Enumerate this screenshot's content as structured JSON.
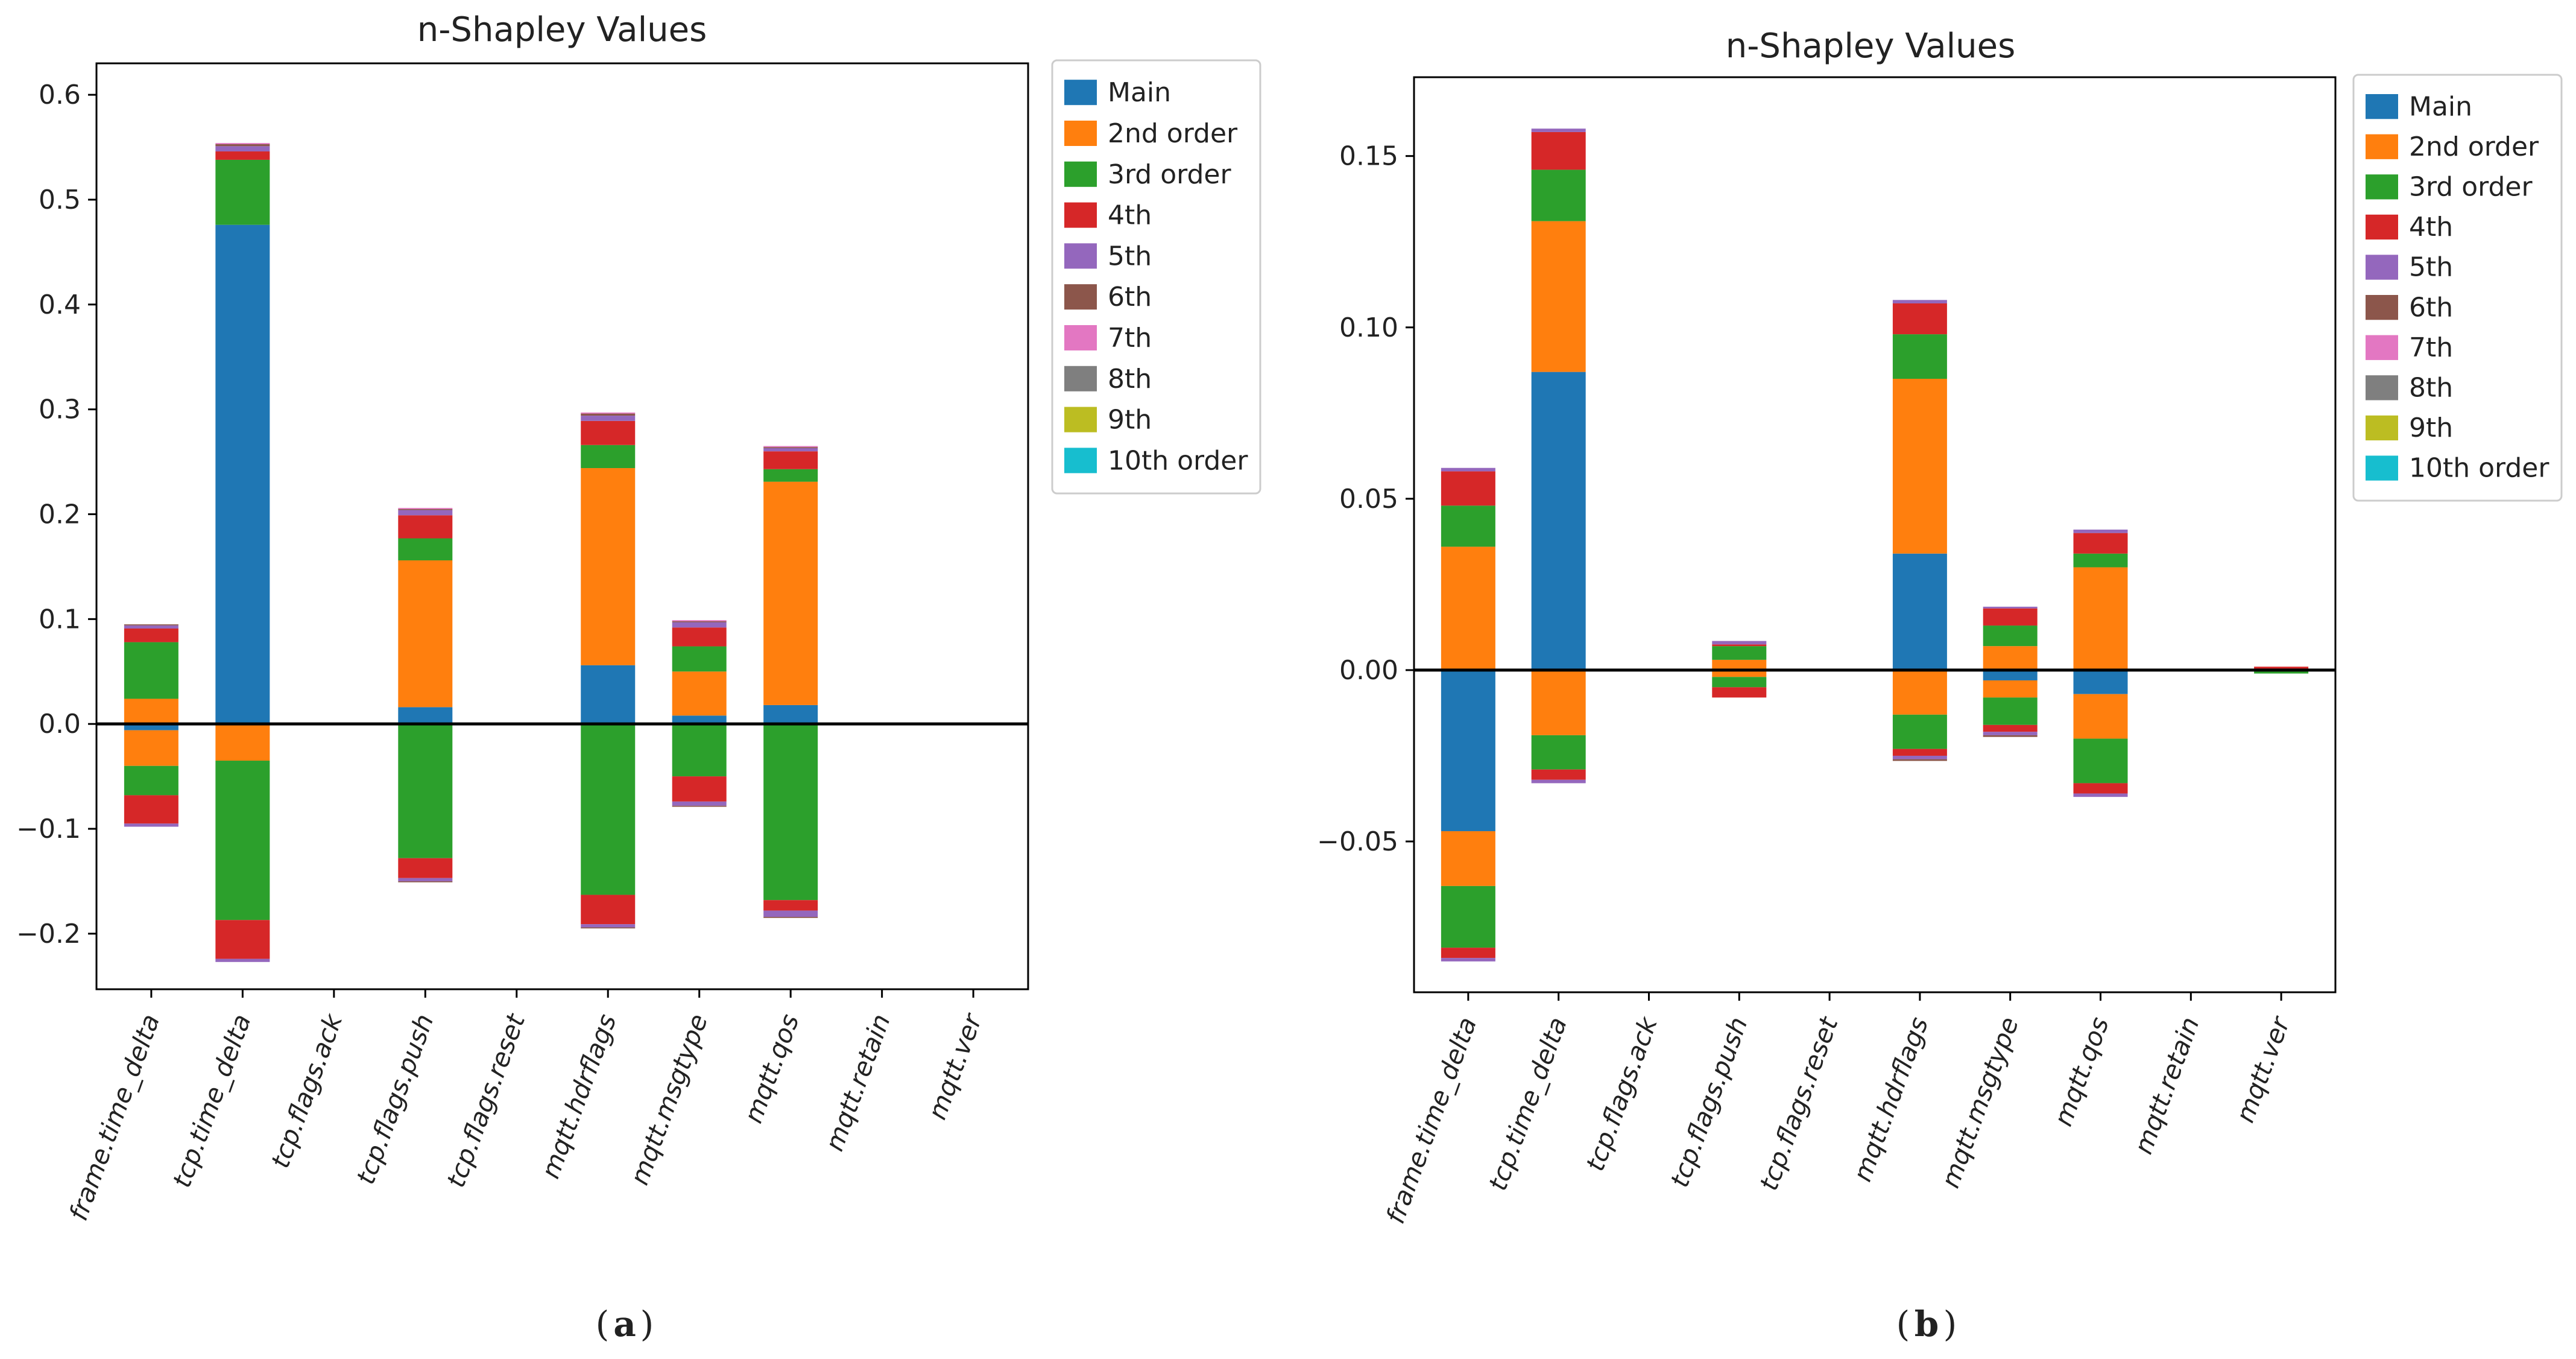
{
  "chart_data": [
    {
      "type": "bar",
      "stacked": true,
      "title": "n-Shapley Values",
      "caption": "a",
      "ylim": [
        -0.253,
        0.63
      ],
      "yticks": [
        -0.2,
        -0.1,
        0.0,
        0.1,
        0.2,
        0.3,
        0.4,
        0.5,
        0.6
      ],
      "ytick_labels": [
        "−0.2",
        "−0.1",
        "0.0",
        "0.1",
        "0.2",
        "0.3",
        "0.4",
        "0.5",
        "0.6"
      ],
      "zero_line": true,
      "legend_position": "outside-right",
      "categories": [
        "frame.time_delta",
        "tcp.time_delta",
        "tcp.flags.ack",
        "tcp.flags.push",
        "tcp.flags.reset",
        "mqtt.hdrflags",
        "mqtt.msgtype",
        "mqtt.qos",
        "mqtt.retain",
        "mqtt.ver"
      ],
      "series": [
        {
          "name": "Main",
          "color": "#1f77b4",
          "values": [
            -0.006,
            0.476,
            0,
            0.016,
            0,
            0.056,
            0.008,
            0.018,
            0,
            0
          ]
        },
        {
          "name": "2nd order",
          "color": "#ff7f0e",
          "values": [
            0.024,
            -0.035,
            0,
            0.14,
            0,
            0.188,
            0.042,
            0.213,
            0,
            0
          ]
        },
        {
          "name": "3rd order",
          "color": "#2ca02c",
          "values": [
            0.054,
            0.062,
            0,
            0.021,
            0,
            0.022,
            0.024,
            0.012,
            0,
            0
          ]
        },
        {
          "name": "4th",
          "color": "#d62728",
          "values": [
            0.013,
            0.008,
            0,
            0.022,
            0,
            0.023,
            0.018,
            0.017,
            0,
            0
          ]
        },
        {
          "name": "5th",
          "color": "#9467bd",
          "values": [
            0.003,
            0.005,
            0,
            0.005,
            0,
            0.005,
            0.005,
            0.003,
            0,
            0
          ]
        },
        {
          "name": "6th",
          "color": "#8c564b",
          "values": [
            0.001,
            0.002,
            0,
            0.001,
            0,
            0.002,
            0.001,
            0.001,
            0,
            0
          ]
        },
        {
          "name": "7th",
          "color": "#e377c2",
          "values": [
            0,
            0.001,
            0,
            0.001,
            0,
            0.001,
            0.001,
            0.001,
            0,
            0
          ]
        },
        {
          "name": "8th",
          "color": "#7f7f7f",
          "values": [
            0,
            0,
            0,
            0,
            0,
            0,
            0,
            0,
            0,
            0
          ]
        },
        {
          "name": "9th",
          "color": "#bcbd22",
          "values": [
            0,
            0,
            0,
            0,
            0,
            0,
            0,
            0,
            0,
            0
          ]
        },
        {
          "name": "10th order",
          "color": "#17becf",
          "values": [
            0,
            0,
            0,
            0,
            0,
            0,
            0,
            0,
            0,
            0
          ]
        }
      ],
      "negative_series": [
        {
          "name": "Main",
          "values": [
            -0.006,
            0,
            0,
            0,
            0,
            0,
            0,
            0,
            0,
            0
          ]
        },
        {
          "name": "2nd order",
          "values": [
            -0.034,
            -0.035,
            0,
            0,
            0,
            0,
            0,
            0,
            0,
            0
          ]
        },
        {
          "name": "3rd order",
          "values": [
            -0.028,
            -0.152,
            0,
            -0.128,
            0,
            -0.163,
            -0.05,
            -0.168,
            0,
            0
          ]
        },
        {
          "name": "4th",
          "values": [
            -0.027,
            -0.037,
            0,
            -0.019,
            0,
            -0.028,
            -0.024,
            -0.01,
            0,
            0
          ]
        },
        {
          "name": "5th",
          "values": [
            -0.003,
            -0.003,
            0,
            -0.003,
            0,
            -0.003,
            -0.004,
            -0.006,
            0,
            0
          ]
        },
        {
          "name": "6th",
          "values": [
            0,
            0,
            0,
            -0.001,
            0,
            -0.001,
            -0.001,
            -0.001,
            0,
            0
          ]
        }
      ]
    },
    {
      "type": "bar",
      "stacked": true,
      "title": "n-Shapley Values",
      "caption": "b",
      "ylim": [
        -0.094,
        0.173
      ],
      "yticks": [
        -0.05,
        0.0,
        0.05,
        0.1,
        0.15
      ],
      "ytick_labels": [
        "−0.05",
        "0.00",
        "0.05",
        "0.10",
        "0.15"
      ],
      "zero_line": true,
      "legend_position": "outside-right",
      "categories": [
        "frame.time_delta",
        "tcp.time_delta",
        "tcp.flags.ack",
        "tcp.flags.push",
        "tcp.flags.reset",
        "mqtt.hdrflags",
        "mqtt.msgtype",
        "mqtt.qos",
        "mqtt.retain",
        "mqtt.ver"
      ],
      "series": [
        {
          "name": "Main",
          "color": "#1f77b4",
          "values": [
            0,
            0.087,
            0,
            0,
            0,
            0.034,
            0,
            0,
            0,
            0
          ]
        },
        {
          "name": "2nd order",
          "color": "#ff7f0e",
          "values": [
            0.036,
            0.044,
            0,
            0.003,
            0,
            0.051,
            0.007,
            0.03,
            0,
            0
          ]
        },
        {
          "name": "3rd order",
          "color": "#2ca02c",
          "values": [
            0.012,
            0.015,
            0,
            0.004,
            0,
            0.013,
            0.006,
            0.004,
            0,
            0
          ]
        },
        {
          "name": "4th",
          "color": "#d62728",
          "values": [
            0.01,
            0.011,
            0,
            0.0005,
            0,
            0.009,
            0.005,
            0.006,
            0,
            0.001
          ]
        },
        {
          "name": "5th",
          "color": "#9467bd",
          "values": [
            0.001,
            0.001,
            0,
            0.001,
            0,
            0.001,
            0.0005,
            0.001,
            0,
            0
          ]
        },
        {
          "name": "6th",
          "color": "#8c564b",
          "values": [
            0,
            0,
            0,
            0,
            0,
            0,
            0,
            0,
            0,
            0
          ]
        },
        {
          "name": "7th",
          "color": "#e377c2",
          "values": [
            0,
            0,
            0,
            0,
            0,
            0,
            0,
            0,
            0,
            0
          ]
        },
        {
          "name": "8th",
          "color": "#7f7f7f",
          "values": [
            0,
            0,
            0,
            0,
            0,
            0,
            0,
            0,
            0,
            0
          ]
        },
        {
          "name": "9th",
          "color": "#bcbd22",
          "values": [
            0,
            0,
            0,
            0,
            0,
            0,
            0,
            0,
            0,
            0
          ]
        },
        {
          "name": "10th order",
          "color": "#17becf",
          "values": [
            0,
            0,
            0,
            0,
            0,
            0,
            0,
            0,
            0,
            0
          ]
        }
      ],
      "negative_series": [
        {
          "name": "Main",
          "values": [
            -0.047,
            0,
            0,
            0,
            0,
            0,
            -0.003,
            -0.007,
            0,
            0
          ]
        },
        {
          "name": "2nd order",
          "values": [
            -0.016,
            -0.019,
            0,
            -0.002,
            0,
            -0.013,
            -0.005,
            -0.013,
            0,
            0
          ]
        },
        {
          "name": "3rd order",
          "values": [
            -0.018,
            -0.01,
            0,
            -0.003,
            0,
            -0.01,
            -0.008,
            -0.013,
            0,
            -0.001
          ]
        },
        {
          "name": "4th",
          "values": [
            -0.003,
            -0.003,
            0,
            -0.003,
            0,
            -0.002,
            -0.002,
            -0.003,
            0,
            0
          ]
        },
        {
          "name": "5th",
          "values": [
            -0.001,
            -0.001,
            0,
            0,
            0,
            -0.001,
            -0.001,
            -0.001,
            0,
            0
          ]
        },
        {
          "name": "6th",
          "values": [
            0,
            0,
            0,
            0,
            0,
            -0.0005,
            -0.0005,
            0,
            0,
            0
          ]
        }
      ]
    }
  ]
}
